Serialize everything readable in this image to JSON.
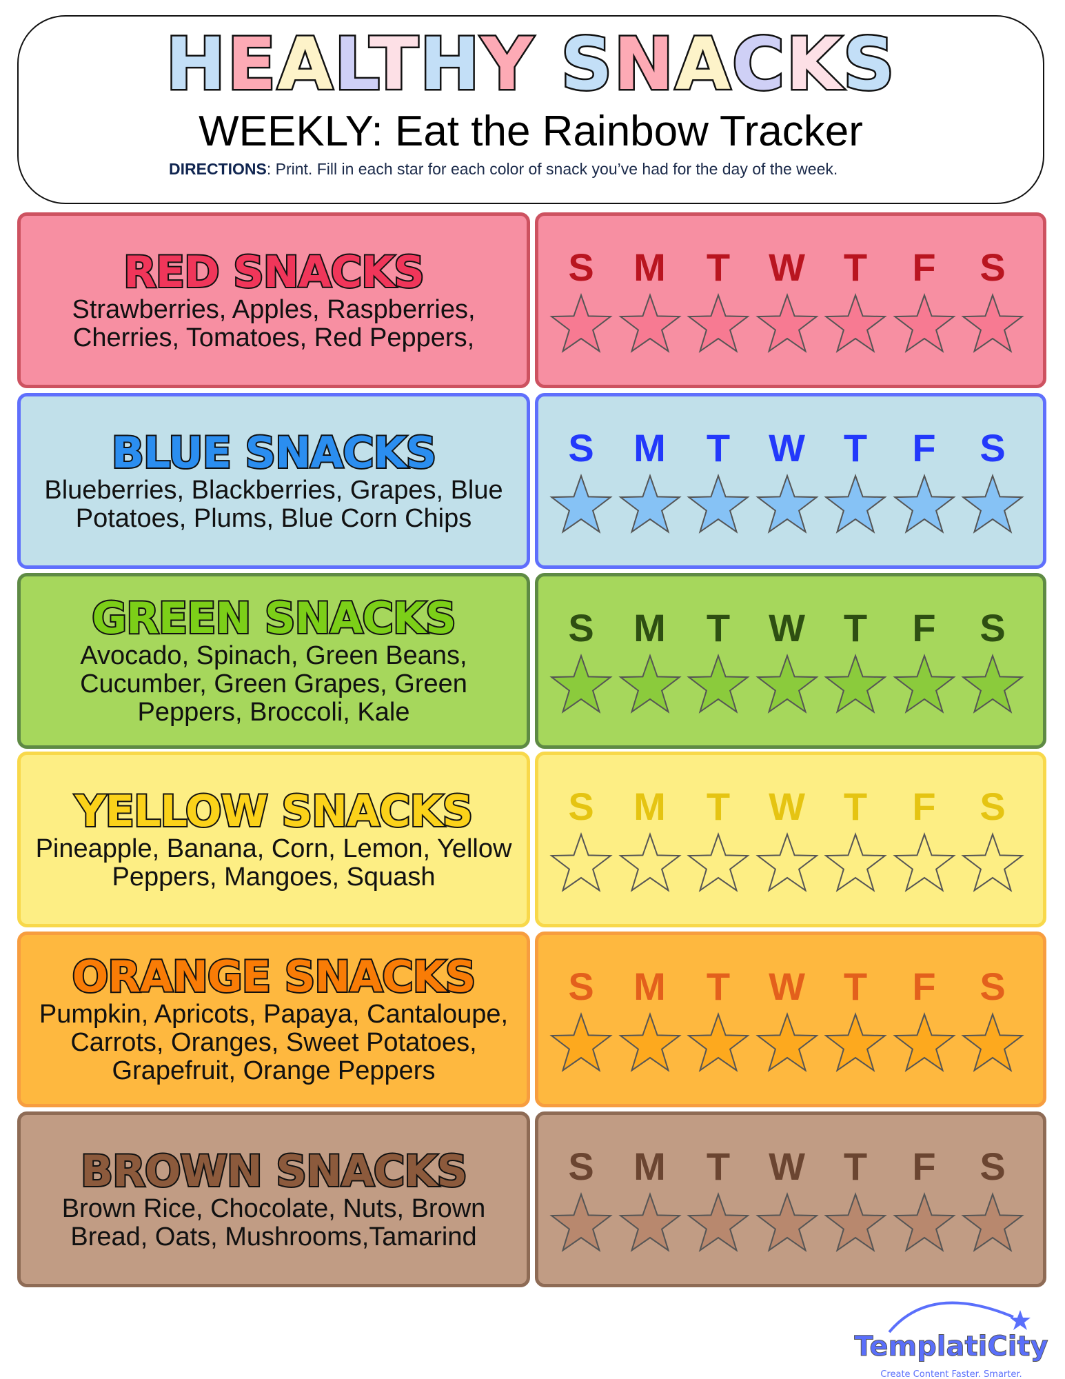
{
  "header": {
    "title_letters": [
      {
        "ch": "H",
        "color": "#c3dff7"
      },
      {
        "ch": "E",
        "color": "#fdaab5"
      },
      {
        "ch": "A",
        "color": "#fdf3c9"
      },
      {
        "ch": "L",
        "color": "#cfd0f6"
      },
      {
        "ch": "T",
        "color": "#fde0e6"
      },
      {
        "ch": "H",
        "color": "#c3dff7"
      },
      {
        "ch": "Y",
        "color": "#fdaab5"
      },
      {
        "ch": " ",
        "color": "#fff"
      },
      {
        "ch": "S",
        "color": "#c3dff7"
      },
      {
        "ch": "N",
        "color": "#fdaab5"
      },
      {
        "ch": "A",
        "color": "#fdf3c9"
      },
      {
        "ch": "C",
        "color": "#cfd0f6"
      },
      {
        "ch": "K",
        "color": "#fde0e6"
      },
      {
        "ch": "S",
        "color": "#c3dff7"
      }
    ],
    "title": "HEALTHY SNACKS",
    "subtitle": "WEEKLY: Eat the Rainbow Tracker",
    "directions_label": "DIRECTIONS",
    "directions_text": ": Print. Fill in each star for each color of snack you’ve had for the day of the week."
  },
  "days": [
    "S",
    "M",
    "T",
    "W",
    "T",
    "F",
    "S"
  ],
  "categories": [
    {
      "title": "RED SNACKS",
      "items": "Strawberries, Apples, Raspberries, Cherries, Tomatoes, Red Peppers,",
      "bg": "#f78fa2",
      "border": "#cd5260",
      "title_color": "#f0365a",
      "day_color": "#b91520",
      "star_color": "#f77a92"
    },
    {
      "title": "BLUE SNACKS",
      "items": "Blueberries, Blackberries, Grapes, Blue Potatoes, Plums, Blue Corn Chips",
      "bg": "#c1e0ea",
      "border": "#5f6ffc",
      "title_color": "#2b8ef0",
      "day_color": "#2339fb",
      "star_color": "#86c2f5"
    },
    {
      "title": "GREEN SNACKS",
      "items": "Avocado, Spinach, Green Beans, Cucumber, Green Grapes, Green Peppers, Broccoli, Kale",
      "bg": "#a6d75c",
      "border": "#5e8a44",
      "title_color": "#7ccf18",
      "day_color": "#2e4f12",
      "star_color": "#8bcb3c"
    },
    {
      "title": "YELLOW SNACKS",
      "items": "Pineapple, Banana, Corn, Lemon, Yellow Peppers, Mangoes, Squash",
      "bg": "#fdee84",
      "border": "#f8d84a",
      "title_color": "#fbd21a",
      "day_color": "#e5c412",
      "star_color": "#fdee84"
    },
    {
      "title": "ORANGE SNACKS",
      "items": "Pumpkin, Apricots, Papaya, Cantaloupe, Carrots, Oranges, Sweet Potatoes, Grapefruit, Orange Peppers",
      "bg": "#feb83f",
      "border": "#f79d3f",
      "title_color": "#f97c06",
      "day_color": "#e3601c",
      "star_color": "#fda91e"
    },
    {
      "title": "BROWN SNACKS",
      "items": "Brown Rice, Chocolate, Nuts, Brown Bread, Oats, Mushrooms,Tamarind",
      "bg": "#c19c84",
      "border": "#8e6b55",
      "title_color": "#8c5a3c",
      "day_color": "#6b4531",
      "star_color": "#b8886e"
    }
  ],
  "logo": {
    "name": "TemplatiCity",
    "tagline": "Create Content Faster. Smarter.",
    "color": "#5a6ffb"
  }
}
